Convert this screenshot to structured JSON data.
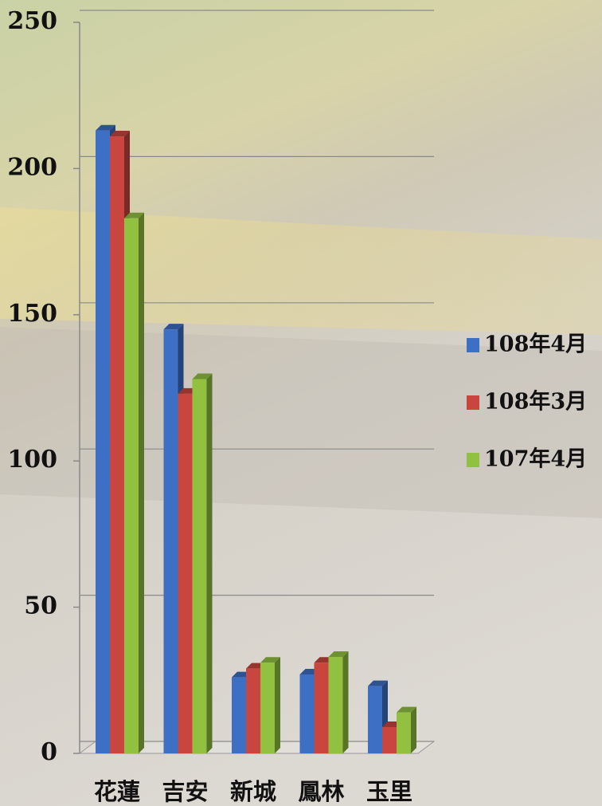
{
  "chart_data": {
    "type": "bar",
    "categories": [
      "花蓮",
      "吉安",
      "新城",
      "鳳林",
      "玉里"
    ],
    "series": [
      {
        "name": "108年4月",
        "color": "#3d6fc4",
        "values": [
          213,
          145,
          26,
          27,
          23
        ]
      },
      {
        "name": "108年3月",
        "color": "#c8463f",
        "values": [
          211,
          123,
          29,
          31,
          9
        ]
      },
      {
        "name": "107年4月",
        "color": "#92c141",
        "values": [
          183,
          128,
          31,
          33,
          14
        ]
      }
    ],
    "ylim": [
      0,
      250
    ],
    "yticks": [
      0,
      50,
      100,
      150,
      200,
      250
    ],
    "grid": true,
    "legend": "right"
  }
}
